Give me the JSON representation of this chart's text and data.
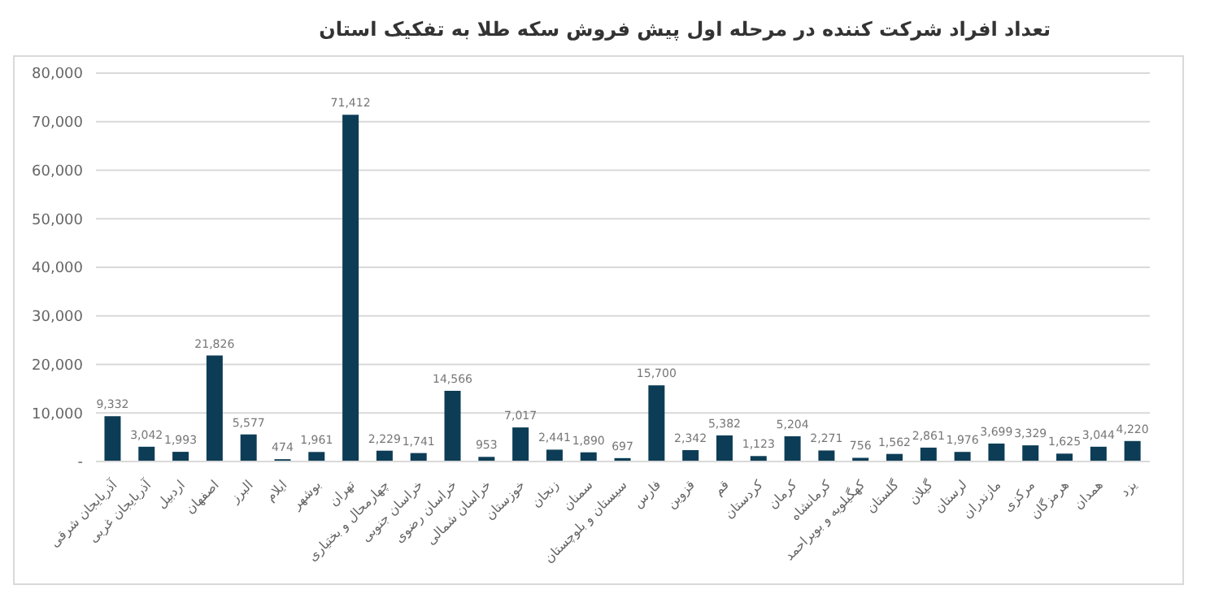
{
  "chart_data": {
    "type": "bar",
    "title": "تعداد افراد شرکت کننده در مرحله اول پیش فروش سکه طلا به تفکیک استان",
    "categories": [
      "آذربایجان شرقی",
      "آذربایجان غربی",
      "اردبیل",
      "اصفهان",
      "البرز",
      "ایلام",
      "بوشهر",
      "تهران",
      "چهارمحال و بختیاری",
      "خراسان جنوبی",
      "خراسان رضوی",
      "خراسان شمالی",
      "خوزستان",
      "زنجان",
      "سمنان",
      "سیستان و بلوچستان",
      "فارس",
      "قزوین",
      "قم",
      "کردستان",
      "کرمان",
      "کرمانشاه",
      "کهگیلویه و بویراحمد",
      "گلستان",
      "گیلان",
      "لرستان",
      "مازندران",
      "مرکزی",
      "هرمزگان",
      "همدان",
      "یزد"
    ],
    "values": [
      9332,
      3042,
      1993,
      21826,
      5577,
      474,
      1961,
      71412,
      2229,
      1741,
      14566,
      953,
      7017,
      2441,
      1890,
      697,
      15700,
      2342,
      5382,
      1123,
      5204,
      2271,
      756,
      1562,
      2861,
      1976,
      3699,
      3329,
      1625,
      3044,
      4220
    ],
    "color": "#0d3d56",
    "ylim": [
      0,
      80000
    ],
    "yticks": [
      {
        "value": 0,
        "label": "-"
      },
      {
        "value": 10000,
        "label": "10,000"
      },
      {
        "value": 20000,
        "label": "20,000"
      },
      {
        "value": 30000,
        "label": "30,000"
      },
      {
        "value": 40000,
        "label": "40,000"
      },
      {
        "value": 50000,
        "label": "50,000"
      },
      {
        "value": 60000,
        "label": "60,000"
      },
      {
        "value": 70000,
        "label": "70,000"
      },
      {
        "value": 80000,
        "label": "80,000"
      }
    ],
    "value_labels": [
      "9,332",
      "3,042",
      "1,993",
      "21,826",
      "5,577",
      "474",
      "1,961",
      "71,412",
      "2,229",
      "1,741",
      "14,566",
      "953",
      "7,017",
      "2,441",
      "1,890",
      "697",
      "15,700",
      "2,342",
      "5,382",
      "1,123",
      "5,204",
      "2,271",
      "756",
      "1,562",
      "2,861",
      "1,976",
      "3,699",
      "3,329",
      "1,625",
      "3,044",
      "4,220"
    ],
    "grid": "y"
  }
}
